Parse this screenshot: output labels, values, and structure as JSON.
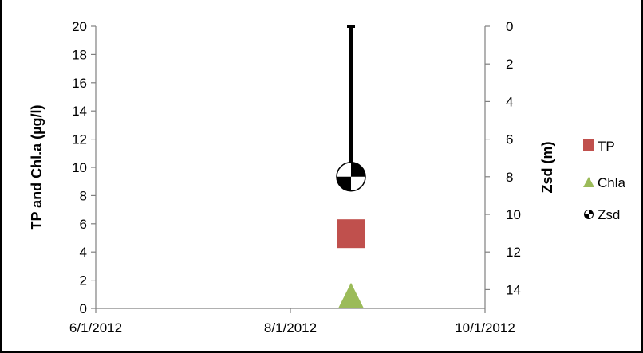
{
  "chart_data": {
    "type": "scatter",
    "title": "",
    "x_tick_labels": [
      "6/1/2012",
      "8/1/2012",
      "10/1/2012"
    ],
    "x_range": [
      "6/1/2012",
      "10/1/2012"
    ],
    "y_left": {
      "label": "TP and Chl.a (µg/l)",
      "range": [
        0,
        20
      ],
      "ticks": [
        "0",
        "2",
        "4",
        "6",
        "8",
        "10",
        "12",
        "14",
        "16",
        "18",
        "20"
      ]
    },
    "y_right": {
      "label": "Zsd (m)",
      "range": [
        0,
        15
      ],
      "inverted": true,
      "ticks": [
        "0",
        "2",
        "4",
        "6",
        "8",
        "10",
        "12",
        "14"
      ]
    },
    "series": [
      {
        "name": "TP",
        "axis": "left",
        "marker": "square",
        "color": "#c0504d",
        "points": [
          {
            "x": "8/20/2012",
            "y": 5.3
          }
        ]
      },
      {
        "name": "Chla",
        "axis": "left",
        "marker": "triangle",
        "color": "#9bbb59",
        "points": [
          {
            "x": "8/20/2012",
            "y": 0.8
          }
        ]
      },
      {
        "name": "Zsd",
        "axis": "right",
        "marker": "checker-disc",
        "color": "#000000",
        "points": [
          {
            "x": "8/20/2012",
            "y": 8.0
          }
        ]
      }
    ],
    "grid": false,
    "legend_position": "right"
  }
}
